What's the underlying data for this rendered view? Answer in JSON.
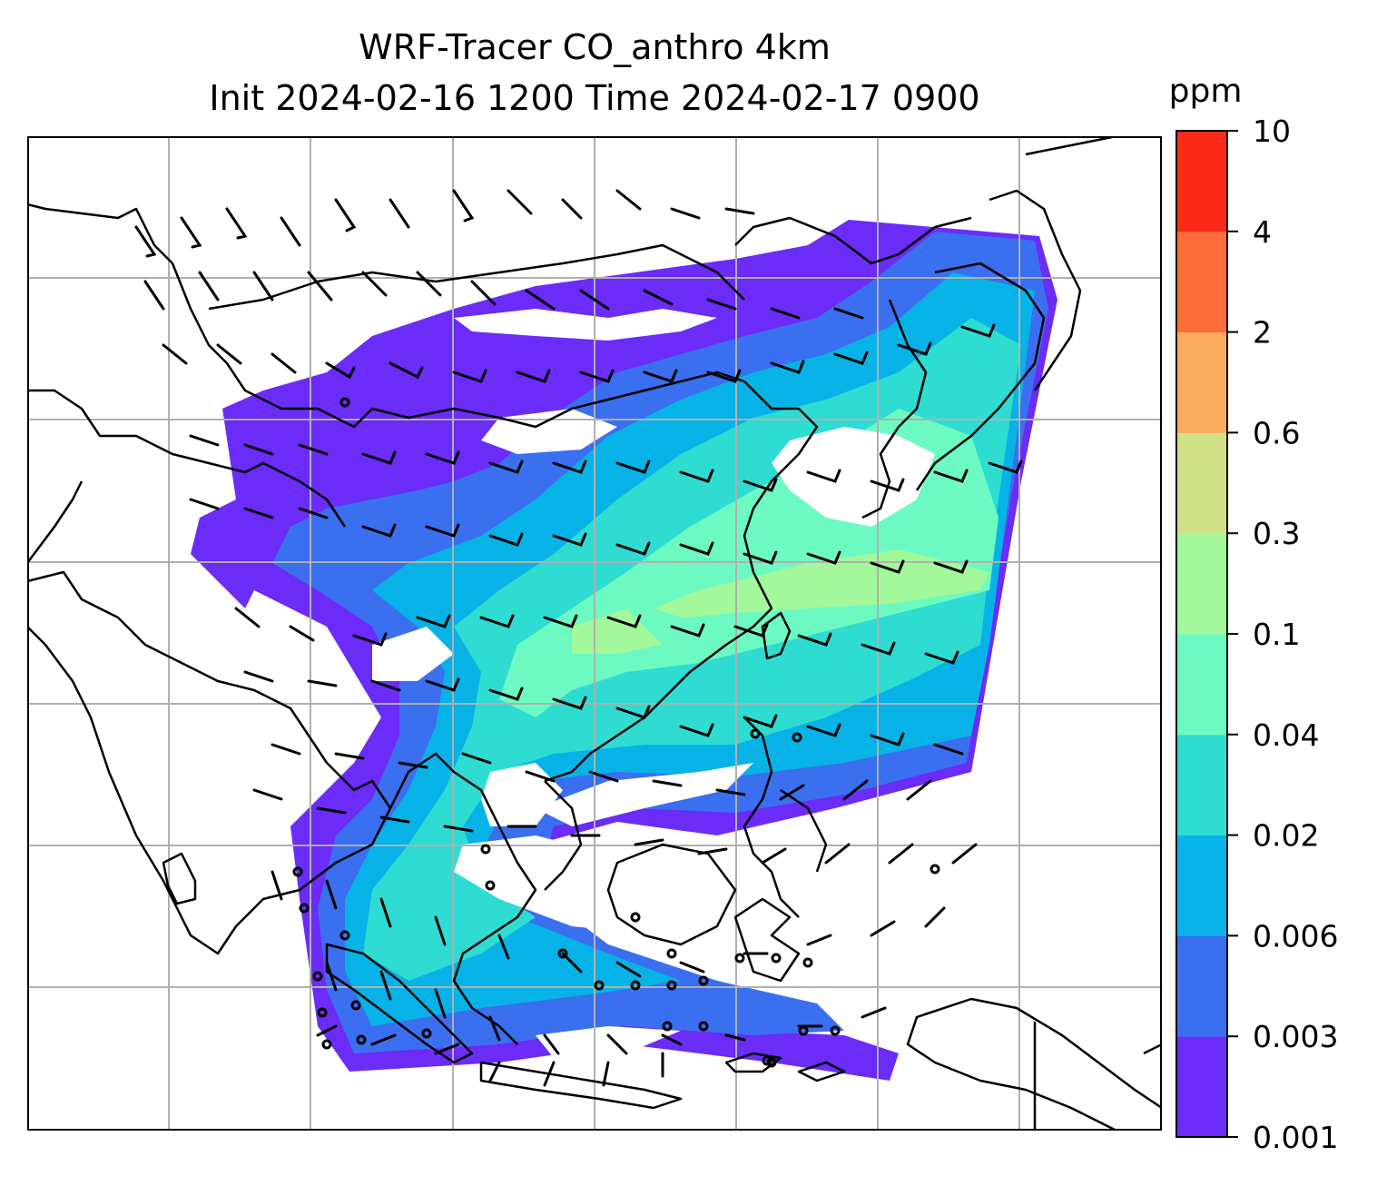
{
  "title": {
    "line1": "WRF-Tracer CO_anthro 4km",
    "line2": "Init 2024-02-16 1200 Time 2024-02-17 0900"
  },
  "colorbar": {
    "unit": "ppm",
    "levels": [
      "0.001",
      "0.003",
      "0.006",
      "0.02",
      "0.04",
      "0.1",
      "0.3",
      "0.6",
      "2",
      "4",
      "10"
    ],
    "colors": [
      "#6a2cf6",
      "#3a6ff0",
      "#07b3e6",
      "#2fdcd2",
      "#6cfac2",
      "#a2f89a",
      "#cfe086",
      "#fbab5e",
      "#fb6e3c",
      "#fb2a16"
    ]
  },
  "map": {
    "background": "#ffffff",
    "gridline_color": "#b0b0b0",
    "coast_color": "#000000"
  }
}
